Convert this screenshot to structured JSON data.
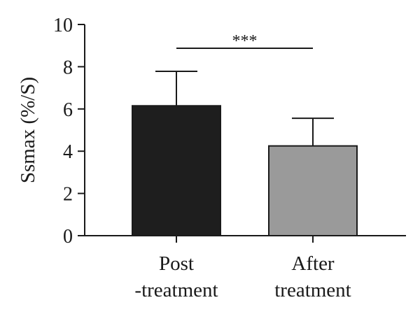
{
  "chart_data": {
    "type": "bar",
    "categories": [
      {
        "line1": "Post",
        "line2": "-treatment"
      },
      {
        "line1": "After",
        "line2": "treatment"
      }
    ],
    "values": [
      6.15,
      4.25
    ],
    "error_upper": [
      7.78,
      5.56
    ],
    "bar_colors": [
      "#1e1e1e",
      "#9a9a9a"
    ],
    "ylabel": "Ssmax (%/S)",
    "ylim": [
      0,
      10
    ],
    "yticks": [
      "0",
      "2",
      "4",
      "6",
      "8",
      "10"
    ],
    "significance": {
      "between": [
        0,
        1
      ],
      "label": "***"
    },
    "grid": false
  }
}
